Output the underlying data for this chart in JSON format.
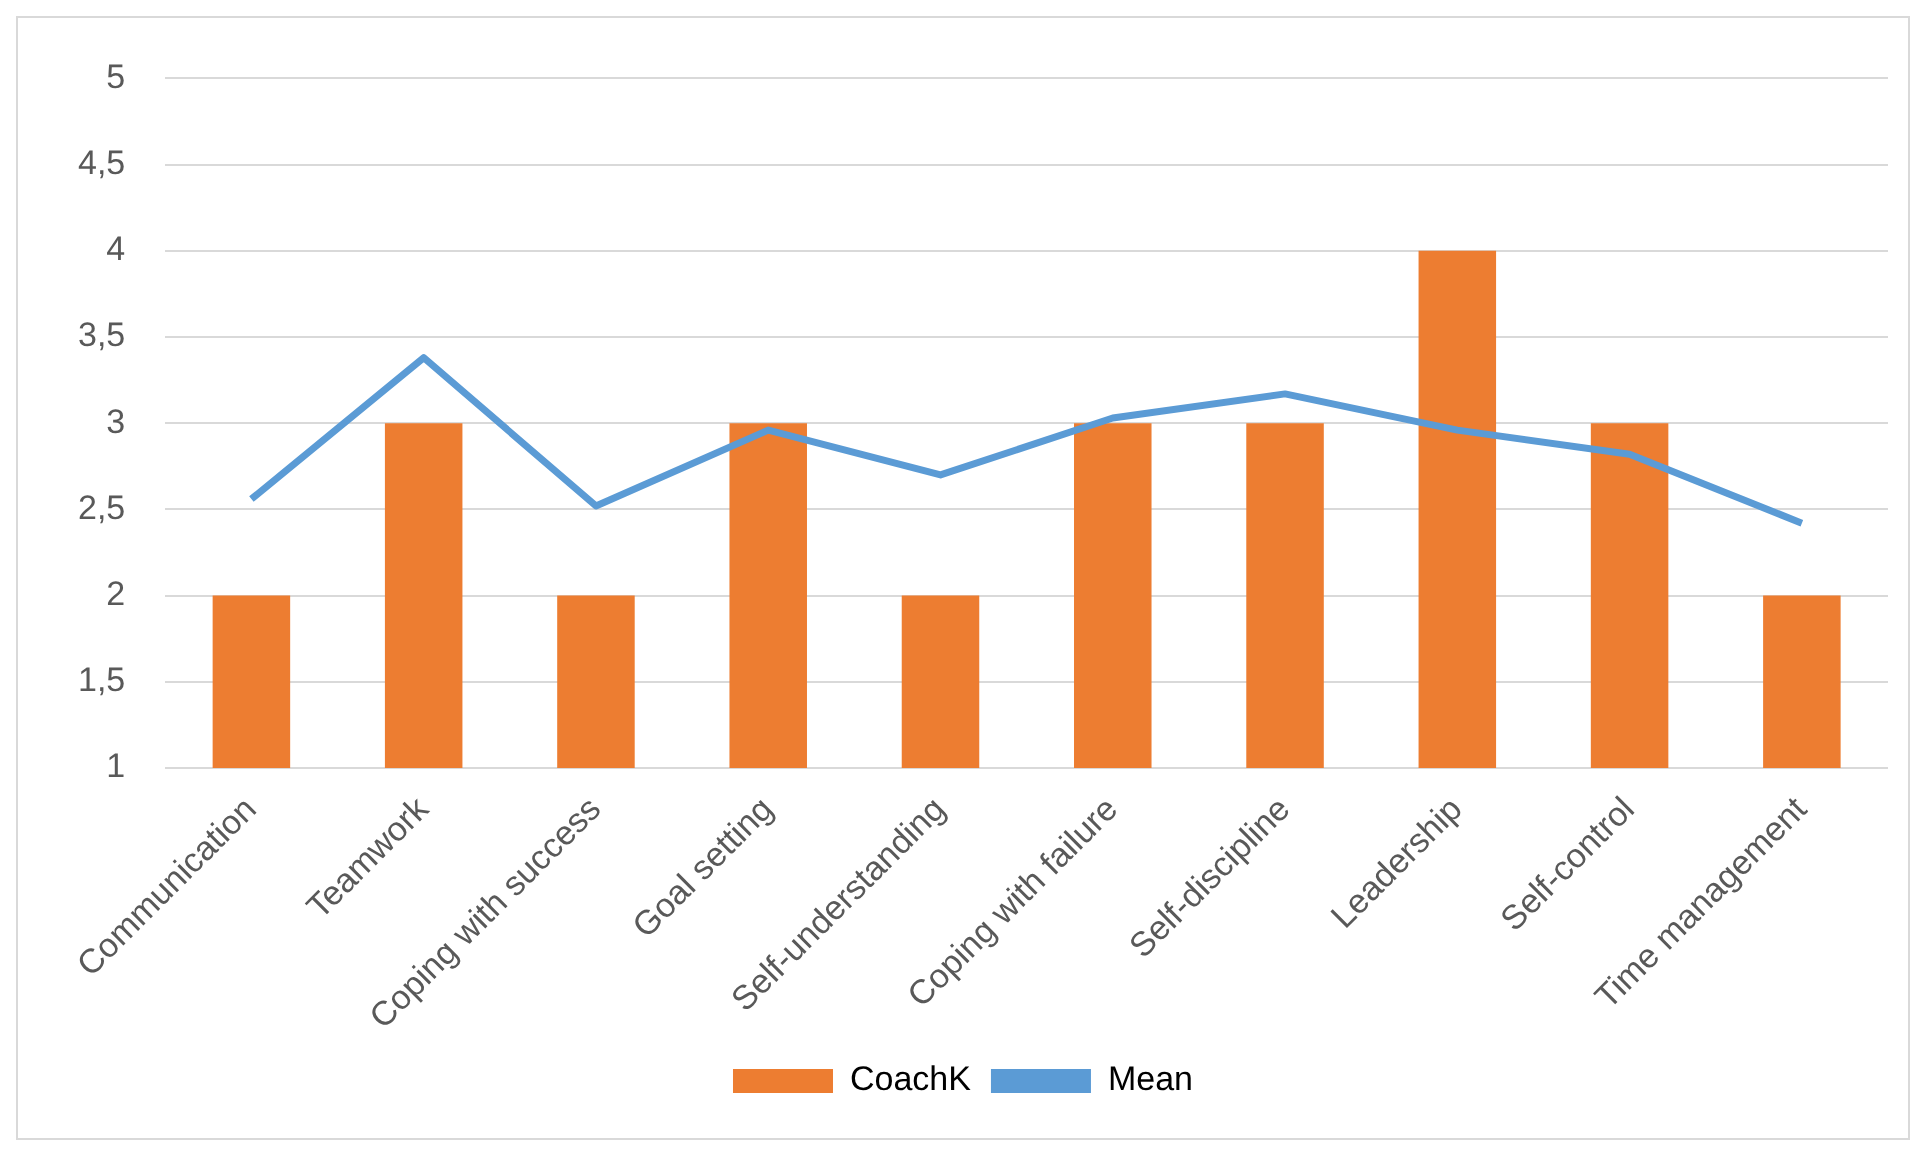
{
  "chart_data": {
    "type": "bar",
    "categories": [
      "Communication",
      "Teamwork",
      "Coping with success",
      "Goal setting",
      "Self-understanding",
      "Coping with failure",
      "Self-discipline",
      "Leadership",
      "Self-control",
      "Time management"
    ],
    "series": [
      {
        "name": "CoachK",
        "color": "#ed7d31",
        "values": [
          2,
          3,
          2,
          3,
          2,
          3,
          3,
          4,
          3,
          2
        ]
      },
      {
        "name": "Mean",
        "type": "line",
        "color": "#5b9bd5",
        "values": [
          2.56,
          3.38,
          2.52,
          2.96,
          2.7,
          3.03,
          3.17,
          2.96,
          2.82,
          2.42
        ]
      }
    ],
    "ylim": [
      1,
      5
    ],
    "yticks": [
      1,
      {
        "value": 1.5,
        "label": "1,5"
      },
      2,
      {
        "value": 2.5,
        "label": "2,5"
      },
      3,
      {
        "value": 3.5,
        "label": "3,5"
      },
      4,
      {
        "value": 4.5,
        "label": "4,5"
      },
      5
    ],
    "grid": "y",
    "legend": "bottom",
    "marker": "none"
  }
}
